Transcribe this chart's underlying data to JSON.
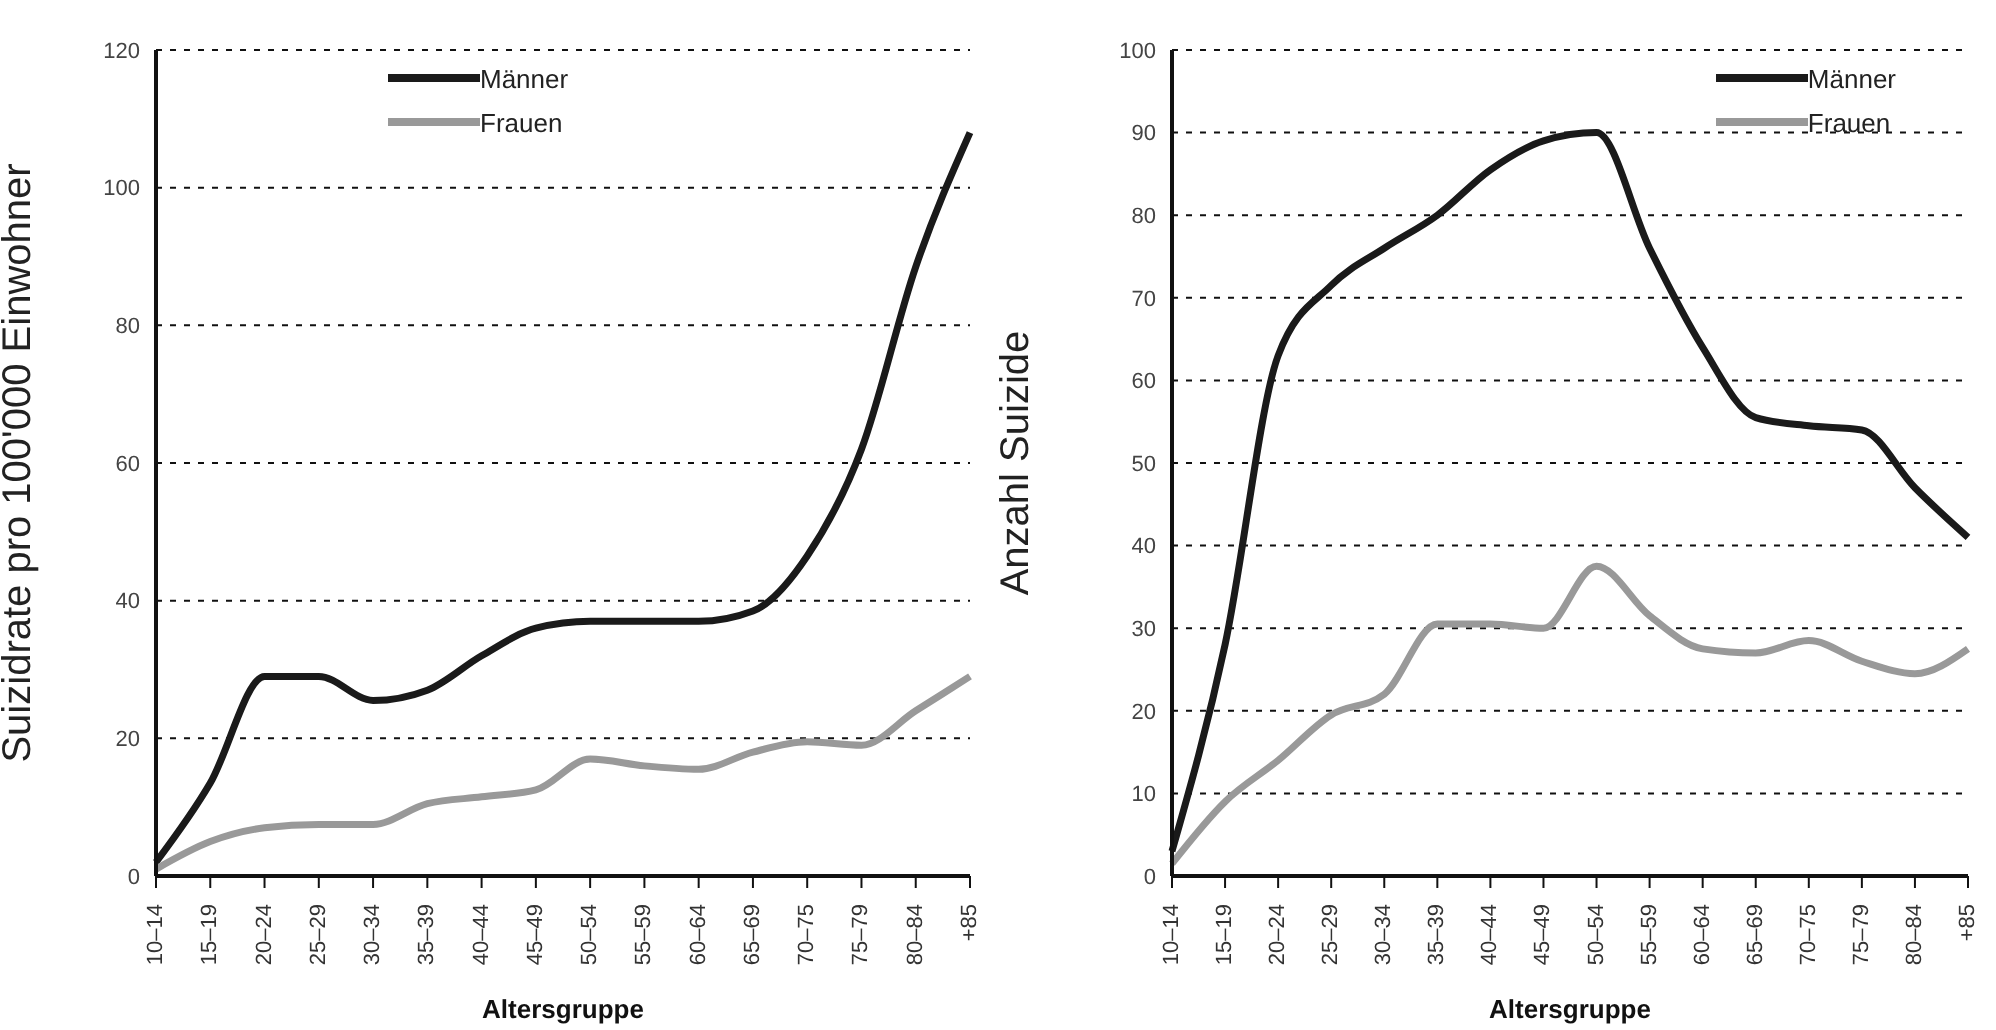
{
  "chart_data": [
    {
      "type": "line",
      "ylabel": "Suizidrate pro 100'000 Einwohner",
      "xlabel": "Altersgruppe",
      "categories": [
        "10–14",
        "15–19",
        "20–24",
        "25–29",
        "30–34",
        "35–39",
        "40–44",
        "45–49",
        "50–54",
        "55–59",
        "60–64",
        "65–69",
        "70–75",
        "75–79",
        "80–84",
        "+85"
      ],
      "series": [
        {
          "name": "Männer",
          "color": "#1a1a1a",
          "values": [
            2,
            13.5,
            29,
            29,
            25.5,
            27,
            32,
            36,
            37,
            37,
            37,
            38.5,
            46.5,
            62,
            88.5,
            108
          ]
        },
        {
          "name": "Frauen",
          "color": "#999999",
          "values": [
            1,
            5,
            7,
            7.5,
            7.5,
            10.5,
            11.5,
            12.5,
            17,
            16,
            15.5,
            18,
            19.5,
            19,
            24,
            29
          ]
        }
      ],
      "ylim": [
        0,
        120
      ],
      "yticks": [
        0,
        20,
        40,
        60,
        80,
        100,
        120
      ],
      "grid": "y",
      "legend": "top left",
      "line_style": "solid",
      "marker": "none"
    },
    {
      "type": "line",
      "ylabel": "Anzahl Suizide",
      "xlabel": "Altersgruppe",
      "categories": [
        "10–14",
        "15–19",
        "20–24",
        "25–29",
        "30–34",
        "35–39",
        "40–44",
        "45–49",
        "50–54",
        "55–59",
        "60–64",
        "65–69",
        "70–75",
        "75–79",
        "80–84",
        "+85"
      ],
      "series": [
        {
          "name": "Männer",
          "color": "#1a1a1a",
          "values": [
            3,
            28,
            63,
            71.5,
            76,
            80,
            85.5,
            89,
            90,
            76,
            64,
            55.5,
            54.5,
            54,
            47,
            41
          ]
        },
        {
          "name": "Frauen",
          "color": "#999999",
          "values": [
            1.5,
            9,
            14,
            19.5,
            22,
            30.5,
            30.5,
            30,
            37.5,
            31.5,
            27.5,
            27,
            28.5,
            26,
            24.5,
            27.5
          ]
        }
      ],
      "ylim": [
        0,
        100
      ],
      "yticks": [
        0,
        10,
        20,
        30,
        40,
        50,
        60,
        70,
        80,
        90,
        100
      ],
      "grid": "y",
      "legend": "top right",
      "line_style": "solid",
      "marker": "none"
    }
  ]
}
